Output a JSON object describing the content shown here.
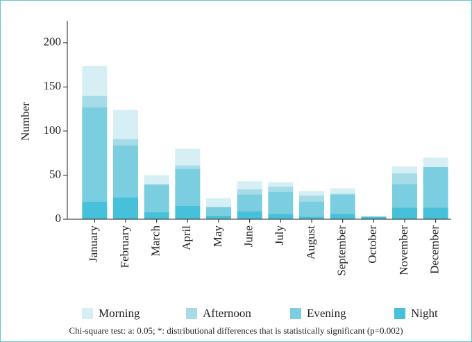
{
  "chart_data": {
    "type": "stacked_bar",
    "ylabel": "Number",
    "categories": [
      "January",
      "February",
      "March",
      "April",
      "May",
      "June",
      "July",
      "August",
      "September",
      "October",
      "November",
      "December"
    ],
    "series": [
      {
        "name": "Night",
        "color": "#46c1d9",
        "values": [
          20,
          25,
          8,
          15,
          4,
          9,
          6,
          3,
          6,
          3,
          13,
          13
        ]
      },
      {
        "name": "Evening",
        "color": "#7bcde0",
        "values": [
          107,
          59,
          31,
          42,
          10,
          19,
          25,
          17,
          22,
          0,
          27,
          46
        ]
      },
      {
        "name": "Afternoon",
        "color": "#a6dbe8",
        "values": [
          13,
          7,
          1,
          4,
          0,
          6,
          6,
          7,
          1,
          0,
          12,
          0
        ]
      },
      {
        "name": "Morning",
        "color": "#d6eff5",
        "values": [
          34,
          33,
          10,
          19,
          10,
          9,
          5,
          5,
          6,
          0,
          8,
          11
        ]
      }
    ],
    "legend_order": [
      "Morning",
      "Afternoon",
      "Evening",
      "Night"
    ],
    "ylim": [
      0,
      225
    ],
    "yticks": [
      0,
      50,
      100,
      150,
      200
    ],
    "note": "Chi-square test: a: 0.05; *: distributional differences that is statistically significant (p=0.002)"
  }
}
